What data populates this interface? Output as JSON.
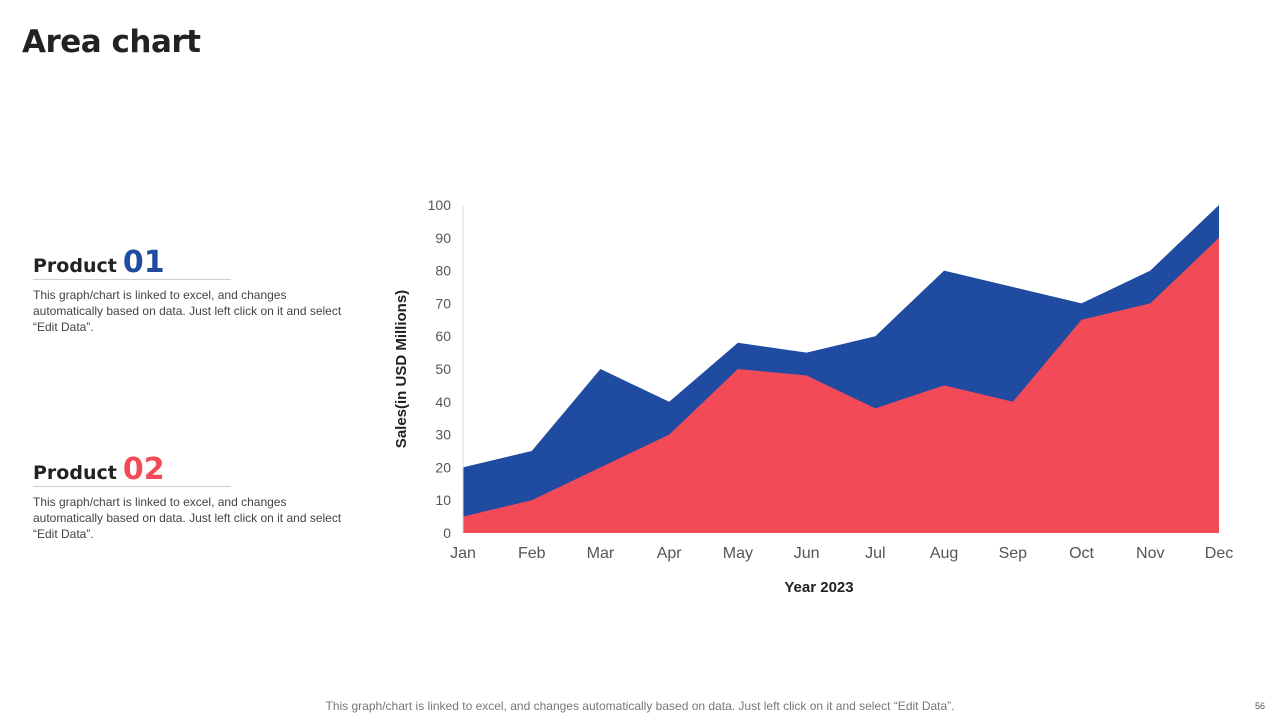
{
  "slide": {
    "title": "Area chart",
    "footer": "This graph/chart is linked to excel, and changes automatically based on data. Just left click on it and select “Edit Data”.",
    "page_number": "56"
  },
  "products": [
    {
      "label": "Product",
      "number": "01",
      "color": "#1f4ba1",
      "description": "This graph/chart is linked to excel, and changes automatically based on data. Just left click on it and select “Edit Data”."
    },
    {
      "label": "Product",
      "number": "02",
      "color": "#f24b57",
      "description": "This graph/chart is linked to excel, and changes automatically based on data. Just left click on it and select “Edit Data”."
    }
  ],
  "chart_data": {
    "type": "area",
    "title": "",
    "xlabel": "Year 2023",
    "ylabel": "Sales(in USD Millions)",
    "categories": [
      "Jan",
      "Feb",
      "Mar",
      "Apr",
      "May",
      "Jun",
      "Jul",
      "Aug",
      "Sep",
      "Oct",
      "Nov",
      "Dec"
    ],
    "ylim": [
      0,
      100
    ],
    "yticks": [
      0,
      10,
      20,
      30,
      40,
      50,
      60,
      70,
      80,
      90,
      100
    ],
    "grid": false,
    "legend": "none",
    "series": [
      {
        "name": "Product 01",
        "color": "#1f4ba1",
        "values": [
          20,
          25,
          50,
          40,
          58,
          55,
          60,
          80,
          75,
          70,
          80,
          100
        ]
      },
      {
        "name": "Product 02",
        "color": "#f24b57",
        "values": [
          5,
          10,
          20,
          30,
          50,
          48,
          38,
          45,
          40,
          65,
          70,
          90
        ]
      }
    ]
  }
}
